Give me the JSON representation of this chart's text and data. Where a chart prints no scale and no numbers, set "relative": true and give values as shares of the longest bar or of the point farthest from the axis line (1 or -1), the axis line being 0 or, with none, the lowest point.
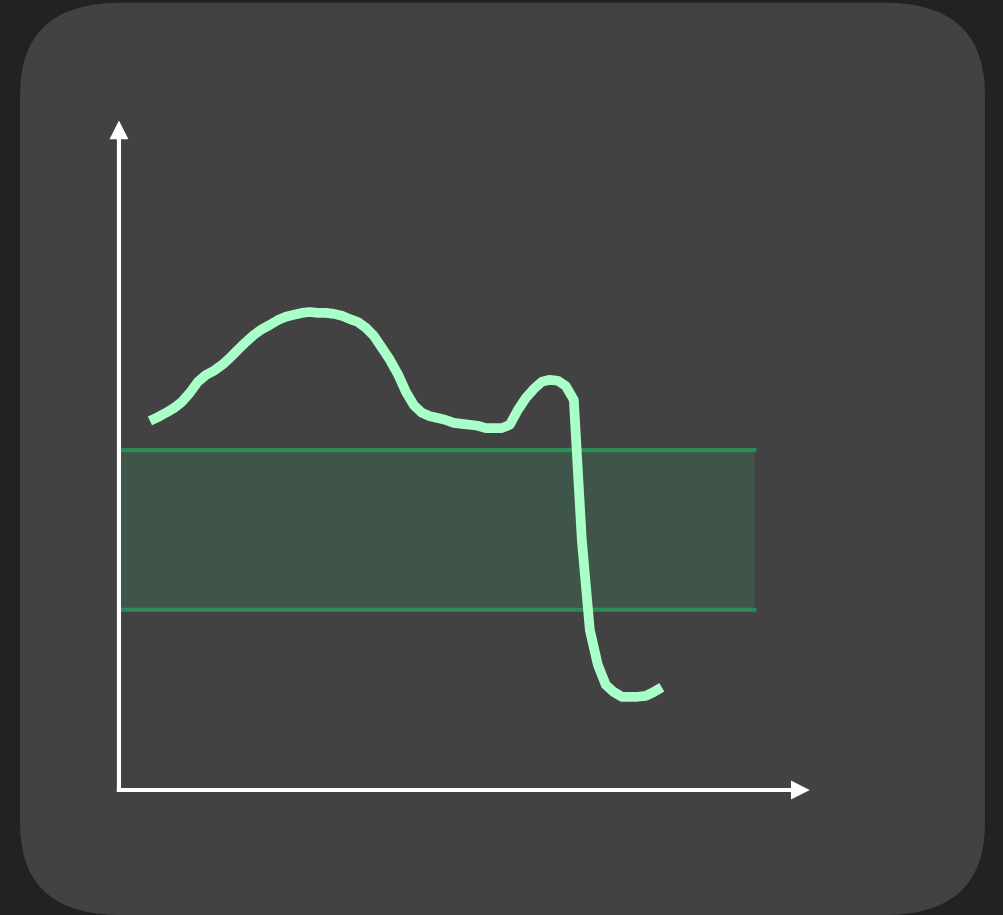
{
  "chart_data": {
    "type": "line",
    "relative": true,
    "categories": [
      null,
      null,
      null,
      null,
      null,
      null,
      null,
      null,
      null,
      null,
      null,
      null,
      null,
      null,
      null,
      null,
      null,
      null,
      null,
      null,
      null,
      null,
      null,
      null,
      null,
      null,
      null,
      null,
      null,
      null,
      null,
      null,
      null,
      null,
      null,
      null,
      null,
      null,
      null,
      null,
      null,
      null,
      null,
      null,
      null,
      null,
      null,
      null,
      null,
      null,
      null,
      null,
      null,
      null,
      null,
      null,
      null,
      null,
      null,
      null,
      null,
      null,
      null,
      null,
      null
    ],
    "series": [
      {
        "color": "#a8ffc8",
        "values": [
          0.772,
          0.78,
          0.789,
          0.799,
          0.812,
          0.831,
          0.854,
          0.868,
          0.877,
          0.889,
          0.904,
          0.921,
          0.937,
          0.952,
          0.964,
          0.973,
          0.983,
          0.99,
          0.994,
          0.998,
          1.0,
          0.998,
          0.998,
          0.996,
          0.992,
          0.985,
          0.979,
          0.967,
          0.95,
          0.925,
          0.9,
          0.87,
          0.833,
          0.805,
          0.789,
          0.782,
          0.778,
          0.774,
          0.768,
          0.766,
          0.764,
          0.762,
          0.757,
          0.757,
          0.757,
          0.764,
          0.795,
          0.82,
          0.839,
          0.854,
          0.858,
          0.856,
          0.845,
          0.816,
          0.523,
          0.335,
          0.262,
          0.22,
          0.205,
          0.195,
          0.195,
          0.195,
          0.197,
          0.205,
          0.215
        ]
      }
    ],
    "bands": [
      {
        "axis": "y",
        "from": 0.377,
        "to": 0.711,
        "color": "#3f5549"
      }
    ],
    "ref_lines": [
      {
        "axis": "y",
        "value": 0.377,
        "color": "#2e8b57"
      },
      {
        "axis": "y",
        "value": 0.711,
        "color": "#2e8b57"
      }
    ]
  }
}
